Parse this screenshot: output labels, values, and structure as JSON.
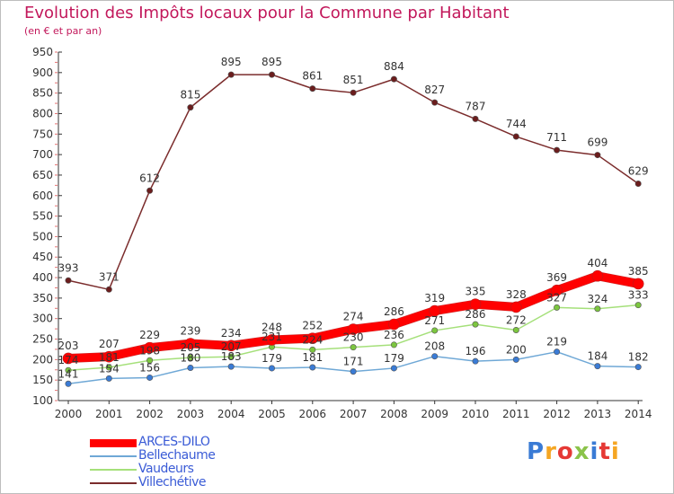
{
  "title": "Evolution des Impôts locaux pour la Commune par Habitant",
  "subtitle": "(en € et par an)",
  "logo": {
    "text": "Proxiti",
    "colors": [
      "#3a7bd5",
      "#f5a623",
      "#e53935",
      "#8bc34a",
      "#3a7bd5",
      "#e53935",
      "#f5a623"
    ]
  },
  "chart_data": {
    "type": "line",
    "title": "Evolution des Impôts locaux pour la Commune par Habitant",
    "subtitle": "(en € et par an)",
    "xlabel": "",
    "ylabel": "",
    "x": [
      "2000",
      "2001",
      "2002",
      "2003",
      "2004",
      "2005",
      "2006",
      "2007",
      "2008",
      "2009",
      "2010",
      "2011",
      "2012",
      "2013",
      "2014"
    ],
    "ylim": [
      100,
      950
    ],
    "yticks": [
      100,
      150,
      200,
      250,
      300,
      350,
      400,
      450,
      500,
      550,
      600,
      650,
      700,
      750,
      800,
      850,
      900,
      950
    ],
    "grid": false,
    "legend_position": "bottom-left",
    "series": [
      {
        "name": "ARCES-DILO",
        "color": "#ff0000",
        "dot_color": "#ff0000",
        "width": 9,
        "values": [
          203,
          207,
          229,
          239,
          234,
          248,
          252,
          274,
          286,
          319,
          335,
          328,
          369,
          404,
          385
        ],
        "labels": [
          "203",
          "207",
          "229",
          "239",
          "234",
          "248",
          "252",
          "274",
          "286",
          "319",
          "335",
          "328",
          "369",
          "404",
          "385"
        ]
      },
      {
        "name": "Bellechaume",
        "color": "#6fa8d6",
        "dot_color": "#3a7bd5",
        "width": 1.5,
        "values": [
          141,
          154,
          156,
          180,
          183,
          179,
          181,
          171,
          179,
          208,
          196,
          200,
          219,
          184,
          182
        ],
        "labels": [
          "141",
          "154",
          "156",
          "180",
          "183",
          "179",
          "181",
          "171",
          "179",
          "208",
          "196",
          "200",
          "219",
          "184",
          "182"
        ]
      },
      {
        "name": "Vaudeurs",
        "color": "#a5e07a",
        "dot_color": "#7cc63f",
        "width": 1.5,
        "values": [
          174,
          181,
          198,
          205,
          207,
          231,
          224,
          230,
          236,
          271,
          286,
          272,
          327,
          324,
          333
        ],
        "labels": [
          "174",
          "181",
          "198",
          "205",
          "207",
          "231",
          "224",
          "230",
          "236",
          "271",
          "286",
          "272",
          "327",
          "324",
          "333"
        ]
      },
      {
        "name": "Villechétive",
        "color": "#7b2c2c",
        "dot_color": "#6b1d1d",
        "width": 1.5,
        "values": [
          393,
          371,
          612,
          815,
          895,
          895,
          861,
          851,
          884,
          827,
          787,
          744,
          711,
          699,
          629
        ],
        "labels": [
          "393",
          "371",
          "612",
          "815",
          "895",
          "895",
          "861",
          "851",
          "884",
          "827",
          "787",
          "744",
          "711",
          "699",
          "629"
        ]
      }
    ]
  }
}
